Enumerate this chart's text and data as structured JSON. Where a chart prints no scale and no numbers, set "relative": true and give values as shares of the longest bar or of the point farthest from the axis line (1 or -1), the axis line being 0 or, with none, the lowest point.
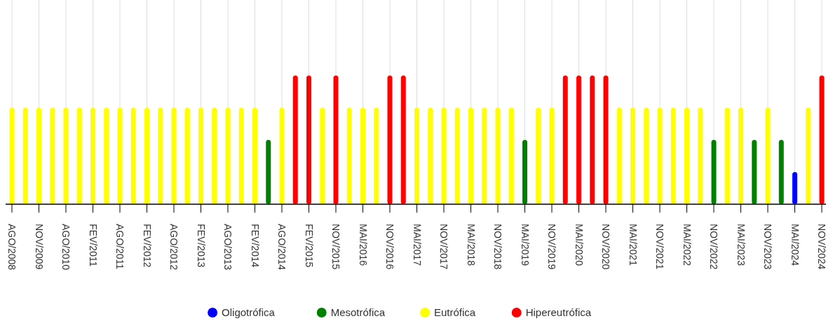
{
  "chart_data": {
    "type": "bar",
    "relative": true,
    "grid": "x",
    "legend": "bottom",
    "categories": [
      "AGO/2008",
      null,
      "NOV/2009",
      null,
      "AGO/2010",
      null,
      "FEV/2011",
      null,
      "AGO/2011",
      null,
      "FEV/2012",
      null,
      "AGO/2012",
      null,
      "FEV/2013",
      null,
      "AGO/2013",
      null,
      "FEV/2014",
      null,
      "AGO/2014",
      null,
      "FEV/2015",
      null,
      "NOV/2015",
      null,
      "MAI/2016",
      null,
      "NOV/2016",
      null,
      "MAI/2017",
      null,
      "NOV/2017",
      null,
      "MAI/2018",
      null,
      "NOV/2018",
      null,
      "MAI/2019",
      null,
      "NOV/2019",
      null,
      "MAI/2020",
      null,
      "NOV/2020",
      null,
      "MAI/2021",
      null,
      "NOV/2021",
      null,
      "MAI/2022",
      null,
      "NOV/2022",
      null,
      "MAI/2023",
      null,
      "NOV/2023",
      null,
      "MAI/2024",
      null,
      "NOV/2024"
    ],
    "series": [
      {
        "name": "Oligotrófica",
        "color": "#0000ff",
        "values": [
          null,
          null,
          null,
          null,
          null,
          null,
          null,
          null,
          null,
          null,
          null,
          null,
          null,
          null,
          null,
          null,
          null,
          null,
          null,
          null,
          null,
          null,
          null,
          null,
          null,
          null,
          null,
          null,
          null,
          null,
          null,
          null,
          null,
          null,
          null,
          null,
          null,
          null,
          null,
          null,
          null,
          null,
          null,
          null,
          null,
          null,
          null,
          null,
          null,
          null,
          null,
          null,
          null,
          null,
          null,
          null,
          null,
          null,
          0.25,
          null,
          null
        ]
      },
      {
        "name": "Mesotrófica",
        "color": "#008000",
        "values": [
          null,
          null,
          null,
          null,
          null,
          null,
          null,
          null,
          null,
          null,
          null,
          null,
          null,
          null,
          null,
          null,
          null,
          null,
          null,
          0.5,
          null,
          null,
          null,
          null,
          null,
          null,
          null,
          null,
          null,
          null,
          null,
          null,
          null,
          null,
          null,
          null,
          null,
          null,
          0.5,
          null,
          null,
          null,
          null,
          null,
          null,
          null,
          null,
          null,
          null,
          null,
          null,
          null,
          0.5,
          null,
          null,
          0.5,
          null,
          0.5,
          null,
          null,
          null
        ]
      },
      {
        "name": "Eutrófica",
        "color": "#ffff00",
        "values": [
          0.75,
          0.75,
          0.75,
          0.75,
          0.75,
          0.75,
          0.75,
          0.75,
          0.75,
          0.75,
          0.75,
          0.75,
          0.75,
          0.75,
          0.75,
          0.75,
          0.75,
          0.75,
          0.75,
          null,
          0.75,
          null,
          null,
          0.75,
          null,
          0.75,
          0.75,
          0.75,
          null,
          null,
          0.75,
          0.75,
          0.75,
          0.75,
          0.75,
          0.75,
          0.75,
          0.75,
          null,
          0.75,
          0.75,
          null,
          null,
          null,
          null,
          0.75,
          0.75,
          0.75,
          0.75,
          0.75,
          0.75,
          0.75,
          null,
          0.75,
          0.75,
          null,
          0.75,
          null,
          null,
          0.75,
          null
        ]
      },
      {
        "name": "Hipereutrófica",
        "color": "#ff0000",
        "values": [
          null,
          null,
          null,
          null,
          null,
          null,
          null,
          null,
          null,
          null,
          null,
          null,
          null,
          null,
          null,
          null,
          null,
          null,
          null,
          null,
          null,
          1,
          1,
          null,
          1,
          null,
          null,
          null,
          1,
          1,
          null,
          null,
          null,
          null,
          null,
          null,
          null,
          null,
          null,
          null,
          null,
          1,
          1,
          1,
          1,
          null,
          null,
          null,
          null,
          null,
          null,
          null,
          null,
          null,
          null,
          null,
          null,
          null,
          null,
          null,
          1
        ]
      }
    ]
  }
}
